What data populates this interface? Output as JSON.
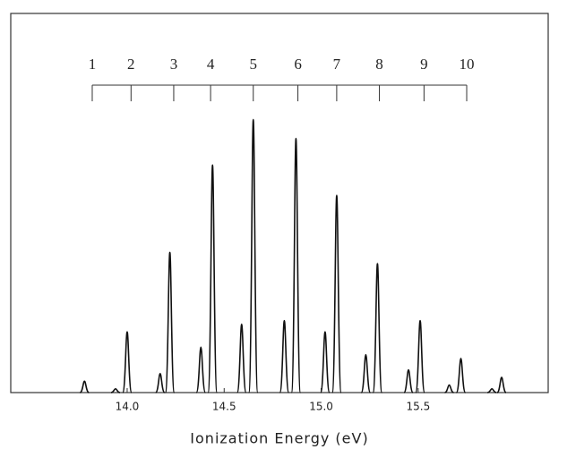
{
  "chart_data": {
    "type": "spectrum",
    "x_label": "Ionization Energy (eV)",
    "color": "#111111",
    "xlim": [
      13.4,
      16.17
    ],
    "xticks": [
      {
        "value": 14,
        "label": "14.0"
      },
      14.5,
      {
        "value": 15,
        "label": "15.0"
      },
      15.5
    ],
    "ylim": [
      0,
      1
    ],
    "x": [
      13.78,
      13.94,
      14.0,
      14.17,
      14.22,
      14.38,
      14.44,
      14.59,
      14.65,
      14.81,
      14.87,
      15.02,
      15.08,
      15.23,
      15.29,
      15.45,
      15.51,
      15.66,
      15.72,
      15.88,
      15.93
    ],
    "values": [
      0.03,
      0.01,
      0.16,
      0.05,
      0.37,
      0.12,
      0.6,
      0.18,
      0.72,
      0.19,
      0.67,
      0.16,
      0.52,
      0.1,
      0.34,
      0.06,
      0.19,
      0.02,
      0.09,
      0.01,
      0.04
    ],
    "progression": {
      "labels": [
        "1",
        "2",
        "3",
        "4",
        "5",
        "6",
        "7",
        "8",
        "9",
        "10"
      ],
      "x": [
        13.82,
        14.02,
        14.24,
        14.43,
        14.65,
        14.88,
        15.08,
        15.3,
        15.53,
        15.75
      ]
    }
  }
}
